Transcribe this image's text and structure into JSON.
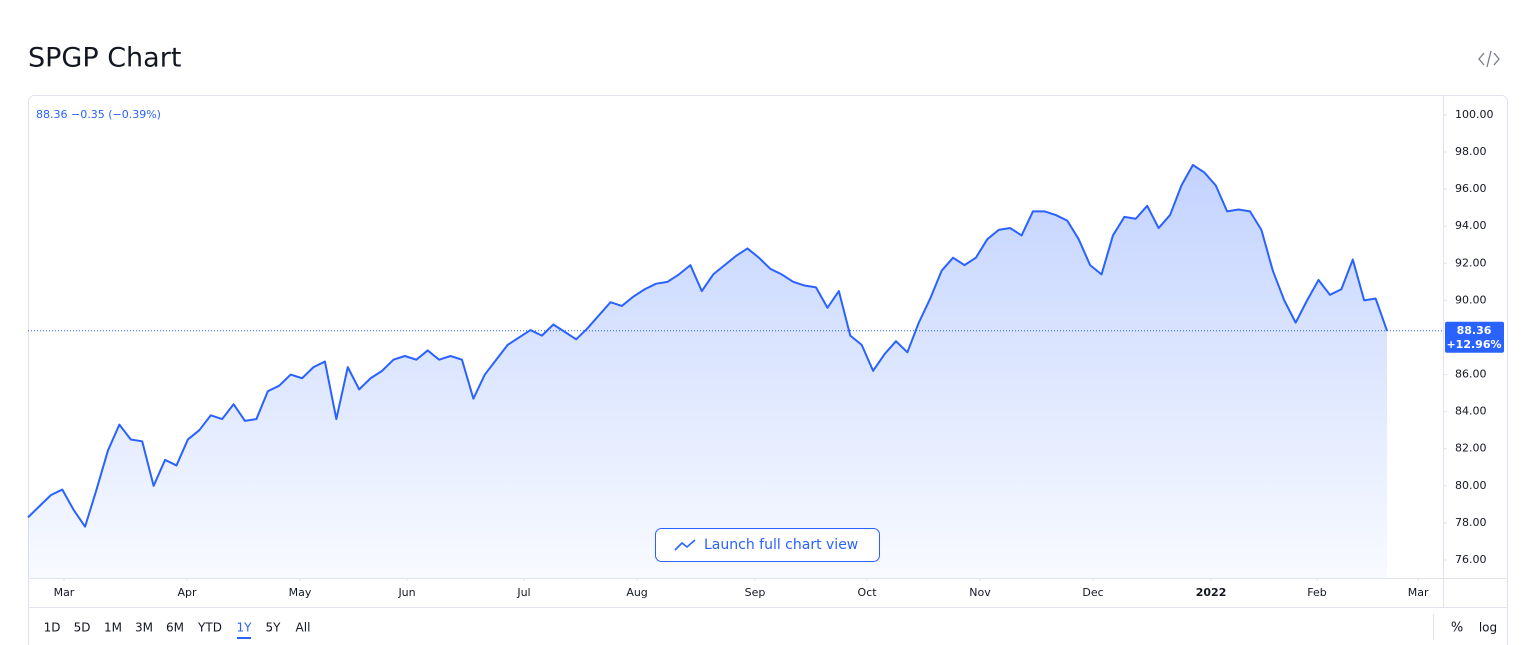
{
  "header": {
    "title": "SPGP Chart"
  },
  "chart_data": {
    "type": "line",
    "color": "#2962ff",
    "values": [
      78.3,
      78.9,
      79.5,
      79.8,
      78.7,
      77.8,
      79.8,
      81.9,
      83.3,
      82.5,
      82.4,
      80.0,
      81.4,
      81.1,
      82.5,
      83.0,
      83.8,
      83.6,
      84.4,
      83.5,
      83.6,
      85.1,
      85.4,
      86.0,
      85.8,
      86.4,
      86.7,
      83.6,
      86.4,
      85.2,
      85.8,
      86.2,
      86.8,
      87.0,
      86.8,
      87.3,
      86.8,
      87.0,
      86.8,
      84.7,
      86.0,
      86.8,
      87.6,
      88.0,
      88.4,
      88.1,
      88.7,
      88.3,
      87.9,
      88.5,
      89.2,
      89.9,
      89.7,
      90.2,
      90.6,
      90.9,
      91.0,
      91.4,
      91.9,
      90.5,
      91.4,
      91.9,
      92.4,
      92.8,
      92.3,
      91.7,
      91.4,
      91.0,
      90.8,
      90.7,
      89.6,
      90.5,
      88.1,
      87.6,
      86.2,
      87.1,
      87.8,
      87.2,
      88.8,
      90.1,
      91.6,
      92.3,
      91.9,
      92.3,
      93.3,
      93.8,
      93.9,
      93.5,
      94.8,
      94.8,
      94.6,
      94.3,
      93.3,
      91.9,
      91.4,
      93.5,
      94.5,
      94.4,
      95.1,
      93.9,
      94.6,
      96.2,
      97.3,
      96.9,
      96.2,
      94.8,
      94.9,
      94.8,
      93.8,
      91.6,
      90.0,
      88.8,
      90.0,
      91.1,
      90.3,
      90.6,
      92.2,
      90.0,
      90.1,
      88.36
    ],
    "change": "−0.35",
    "change_pct": "(−0.39%)",
    "period_change_pct": "+12.96%",
    "xlim": [
      0,
      123.9
    ],
    "xticks": [
      {
        "value": 3.15,
        "label": "Mar"
      },
      {
        "value": 13.92,
        "label": "Apr"
      },
      {
        "value": 23.82,
        "label": "May"
      },
      {
        "value": 33.19,
        "label": "Jun"
      },
      {
        "value": 43.43,
        "label": "Jul"
      },
      {
        "value": 53.33,
        "label": "Aug"
      },
      {
        "value": 63.66,
        "label": "Sep"
      },
      {
        "value": 73.47,
        "label": "Oct"
      },
      {
        "value": 83.36,
        "label": "Nov"
      },
      {
        "value": 93.26,
        "label": "Dec"
      },
      {
        "value": 103.59,
        "label": "2022"
      },
      {
        "value": 112.87,
        "label": "Feb"
      },
      {
        "value": 121.72,
        "label": "Mar"
      }
    ],
    "ylim": [
      75.03,
      101.02
    ],
    "yticks": [
      {
        "value": 76,
        "label": "76.00"
      },
      {
        "value": 78,
        "label": "78.00"
      },
      {
        "value": 80,
        "label": "80.00"
      },
      {
        "value": 82,
        "label": "82.00"
      },
      {
        "value": 84,
        "label": "84.00"
      },
      {
        "value": 86,
        "label": "86.00"
      },
      {
        "value": 88,
        "label": "88.00"
      },
      {
        "value": 90,
        "label": "90.00"
      },
      {
        "value": 92,
        "label": "92.00"
      },
      {
        "value": 94,
        "label": "94.00"
      },
      {
        "value": 96,
        "label": "96.00"
      },
      {
        "value": 98,
        "label": "98.00"
      },
      {
        "value": 100,
        "label": "100.00"
      }
    ]
  },
  "controls": {
    "ranges": [
      "1D",
      "5D",
      "1M",
      "3M",
      "6M",
      "YTD",
      "1Y",
      "5Y",
      "All"
    ],
    "active_range_index": 6,
    "percent": "%",
    "log": "log",
    "launch": "Launch full chart view"
  }
}
